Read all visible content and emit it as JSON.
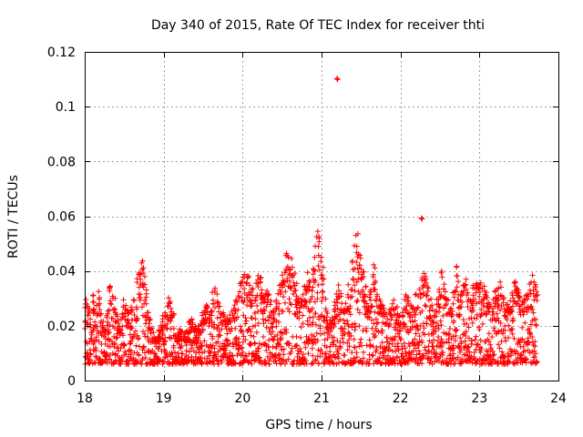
{
  "chart_data": {
    "type": "scatter",
    "title": "Day 340 of 2015, Rate Of TEC Index for receiver thti",
    "xlabel": "GPS time / hours",
    "ylabel": "ROTI / TECUs",
    "xlim": [
      18,
      24
    ],
    "ylim": [
      0,
      0.12
    ],
    "xticks": [
      18,
      19,
      20,
      21,
      22,
      23,
      24
    ],
    "xtick_labels": [
      "18",
      "19",
      "20",
      "21",
      "22",
      "23",
      "24"
    ],
    "yticks": [
      0,
      0.02,
      0.04,
      0.06,
      0.08,
      0.1,
      0.12
    ],
    "ytick_labels": [
      "0",
      "0.02",
      "0.04",
      "0.06",
      "0.08",
      "0.1",
      "0.12"
    ],
    "grid": true,
    "marker": "plus",
    "color": "#ff0000",
    "series": [
      {
        "name": "ROTI",
        "x_start": 18.0,
        "x_step": 0.025,
        "envelope_values": [
          0.028,
          0.03,
          0.027,
          0.025,
          0.032,
          0.032,
          0.031,
          0.033,
          0.026,
          0.022,
          0.02,
          0.024,
          0.028,
          0.035,
          0.033,
          0.03,
          0.025,
          0.022,
          0.023,
          0.027,
          0.031,
          0.028,
          0.026,
          0.024,
          0.027,
          0.03,
          0.029,
          0.04,
          0.044,
          0.045,
          0.042,
          0.034,
          0.03,
          0.024,
          0.02,
          0.018,
          0.017,
          0.016,
          0.019,
          0.022,
          0.024,
          0.026,
          0.029,
          0.031,
          0.027,
          0.025,
          0.02,
          0.018,
          0.019,
          0.018,
          0.017,
          0.018,
          0.019,
          0.022,
          0.024,
          0.023,
          0.02,
          0.019,
          0.021,
          0.022,
          0.025,
          0.027,
          0.028,
          0.025,
          0.029,
          0.033,
          0.034,
          0.032,
          0.03,
          0.028,
          0.026,
          0.024,
          0.023,
          0.024,
          0.025,
          0.026,
          0.028,
          0.03,
          0.033,
          0.036,
          0.038,
          0.039,
          0.04,
          0.041,
          0.038,
          0.034,
          0.032,
          0.036,
          0.04,
          0.038,
          0.035,
          0.032,
          0.033,
          0.035,
          0.03,
          0.028,
          0.026,
          0.03,
          0.033,
          0.036,
          0.04,
          0.045,
          0.048,
          0.047,
          0.043,
          0.045,
          0.042,
          0.036,
          0.033,
          0.03,
          0.031,
          0.035,
          0.037,
          0.04,
          0.038,
          0.034,
          0.045,
          0.05,
          0.055,
          0.053,
          0.048,
          0.042,
          0.03,
          0.025,
          0.022,
          0.024,
          0.026,
          0.029,
          0.032,
          0.035,
          0.033,
          0.028,
          0.03,
          0.033,
          0.035,
          0.038,
          0.045,
          0.053,
          0.055,
          0.05,
          0.047,
          0.04,
          0.035,
          0.03,
          0.032,
          0.034,
          0.045,
          0.042,
          0.037,
          0.033,
          0.03,
          0.028,
          0.027,
          0.026,
          0.025,
          0.027,
          0.029,
          0.031,
          0.028,
          0.026,
          0.025,
          0.027,
          0.03,
          0.032,
          0.031,
          0.029,
          0.028,
          0.03,
          0.033,
          0.035,
          0.036,
          0.038,
          0.041,
          0.041,
          0.036,
          0.03,
          0.028,
          0.027,
          0.03,
          0.033,
          0.035,
          0.04,
          0.036,
          0.033,
          0.03,
          0.028,
          0.032,
          0.035,
          0.042,
          0.039,
          0.035,
          0.033,
          0.036,
          0.037,
          0.034,
          0.032,
          0.03,
          0.035,
          0.036,
          0.036,
          0.037,
          0.038,
          0.036,
          0.034,
          0.031,
          0.029,
          0.028,
          0.03,
          0.033,
          0.036,
          0.036,
          0.035,
          0.032,
          0.03,
          0.028,
          0.029,
          0.032,
          0.035,
          0.037,
          0.036,
          0.034,
          0.032,
          0.03,
          0.031,
          0.033,
          0.036,
          0.038,
          0.039,
          0.037,
          0.035
        ],
        "outliers": [
          {
            "x": 21.2,
            "y": 0.11
          },
          {
            "x": 22.27,
            "y": 0.059
          }
        ]
      }
    ]
  }
}
